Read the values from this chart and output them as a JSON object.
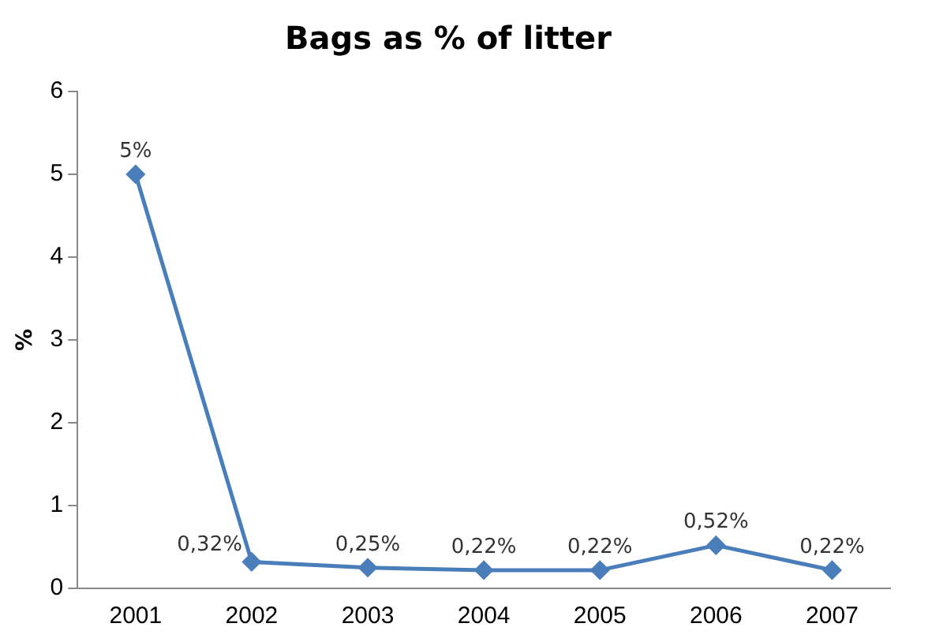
{
  "chart_data": {
    "type": "line",
    "title": "Bags as % of litter",
    "ylabel": "%",
    "categories": [
      "2001",
      "2002",
      "2003",
      "2004",
      "2005",
      "2006",
      "2007"
    ],
    "series": [
      {
        "color": "#4a7ebb",
        "values": [
          5,
          0.32,
          0.25,
          0.22,
          0.22,
          0.52,
          0.22
        ],
        "value_labels": [
          "5%",
          "0,32%",
          "0,25%",
          "0,22%",
          "0,22%",
          "0,52%",
          "0,22%"
        ]
      }
    ],
    "ylim": [
      0,
      6
    ],
    "yticks": [
      0,
      1,
      2,
      3,
      4,
      5,
      6
    ],
    "grid": false,
    "legend": false,
    "marker": "diamond",
    "line_style": "solid"
  }
}
